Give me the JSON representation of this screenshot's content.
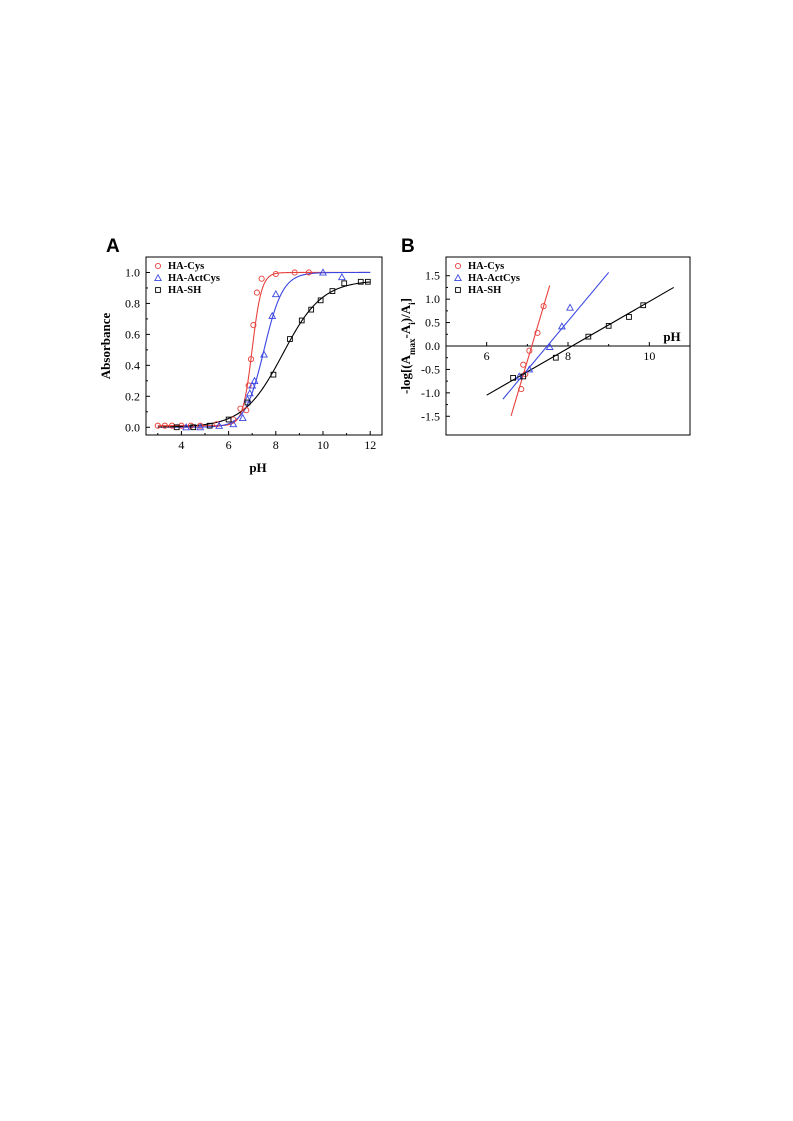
{
  "figure": {
    "panels": [
      "A",
      "B"
    ],
    "legend": [
      "HA-Cys",
      "HA-ActCys",
      "HA-SH"
    ],
    "colors": {
      "HA-Cys": "#e8413c",
      "HA-ActCys": "#3a47e0",
      "HA-SH": "#000000"
    },
    "markers": {
      "HA-Cys": "circle",
      "HA-ActCys": "triangle",
      "HA-SH": "square"
    }
  },
  "chart_data": [
    {
      "panel": "A",
      "type": "scatter",
      "xlabel": "pH",
      "ylabel": "Absorbance",
      "xlim": [
        2.5,
        12.5
      ],
      "ylim": [
        -0.05,
        1.1
      ],
      "xticks": [
        4,
        6,
        8,
        10,
        12
      ],
      "yticks": [
        0.0,
        0.2,
        0.4,
        0.6,
        0.8,
        1.0
      ],
      "ytick_labels": [
        "0.0",
        "0.2",
        "0.4",
        "0.6",
        "0.8",
        "1.0"
      ],
      "legend_position": "top-left",
      "series": [
        {
          "name": "HA-Cys",
          "marker": "circle",
          "x": [
            3.0,
            3.3,
            3.6,
            4.0,
            4.4,
            4.8,
            5.5,
            6.2,
            6.5,
            6.75,
            6.85,
            6.95,
            7.05,
            7.2,
            7.4,
            8.0,
            8.8,
            9.4
          ],
          "y": [
            0.01,
            0.01,
            0.01,
            0.01,
            0.01,
            0.01,
            0.02,
            0.05,
            0.12,
            0.11,
            0.27,
            0.44,
            0.66,
            0.87,
            0.96,
            0.99,
            1.0,
            1.0
          ],
          "fit": {
            "form": "sigmoid",
            "pKa": 7.0,
            "k": 5.0,
            "min": 0.01,
            "max": 1.0
          }
        },
        {
          "name": "HA-ActCys",
          "marker": "triangle",
          "x": [
            4.2,
            4.8,
            5.6,
            6.2,
            6.6,
            6.8,
            6.9,
            7.0,
            7.1,
            7.5,
            7.85,
            8.0,
            10.0,
            10.8
          ],
          "y": [
            0.0,
            0.0,
            0.01,
            0.02,
            0.06,
            0.18,
            0.22,
            0.27,
            0.3,
            0.47,
            0.72,
            0.86,
            1.0,
            0.97
          ],
          "fit": {
            "form": "sigmoid",
            "pKa": 7.5,
            "k": 2.5,
            "min": 0.0,
            "max": 1.0
          }
        },
        {
          "name": "HA-SH",
          "marker": "square",
          "x": [
            3.8,
            4.5,
            5.2,
            6.0,
            6.8,
            7.9,
            8.6,
            9.1,
            9.5,
            9.9,
            10.4,
            10.9,
            11.6,
            11.9
          ],
          "y": [
            0.0,
            0.0,
            0.01,
            0.05,
            0.16,
            0.34,
            0.57,
            0.69,
            0.76,
            0.82,
            0.88,
            0.93,
            0.94,
            0.94
          ],
          "fit": {
            "form": "sigmoid",
            "pKa": 8.3,
            "k": 1.2,
            "min": 0.0,
            "max": 0.95
          }
        }
      ]
    },
    {
      "panel": "B",
      "type": "scatter",
      "xlabel": "pH",
      "ylabel": "-log[(Amax-Ai)/Ai]",
      "ylabel_parts": {
        "prefix": "-log[(A",
        "sub1": "max",
        "middle": "-A",
        "sub2": "i",
        "tail": ")/A",
        "sub3": "i",
        "suffix": "]"
      },
      "xlim": [
        5.0,
        11.0
      ],
      "ylim": [
        -1.9,
        1.9
      ],
      "xticks": [
        6,
        8,
        10
      ],
      "yticks": [
        -1.5,
        -1.0,
        -0.5,
        0.0,
        0.5,
        1.0,
        1.5
      ],
      "ytick_labels": [
        "-1.5",
        "-1.0",
        "-0.5",
        "0.0",
        "0.5",
        "1.0",
        "1.5"
      ],
      "zero_line": true,
      "legend_position": "top-left",
      "series": [
        {
          "name": "HA-Cys",
          "marker": "circle",
          "x": [
            6.85,
            6.9,
            6.95,
            7.05,
            7.25,
            7.4
          ],
          "y": [
            -0.92,
            -0.4,
            -0.6,
            -0.1,
            0.28,
            0.85
          ],
          "fit": {
            "form": "line",
            "x_range": [
              6.6,
              7.55
            ],
            "slope": 2.93,
            "intercept": -20.83
          }
        },
        {
          "name": "HA-ActCys",
          "marker": "triangle",
          "x": [
            6.8,
            7.05,
            7.55,
            7.85,
            8.05
          ],
          "y": [
            -0.65,
            -0.5,
            -0.02,
            0.42,
            0.82
          ],
          "fit": {
            "form": "line",
            "x_range": [
              6.4,
              9.0
            ],
            "slope": 1.04,
            "intercept": -7.79
          }
        },
        {
          "name": "HA-SH",
          "marker": "square",
          "x": [
            6.65,
            6.9,
            7.7,
            8.5,
            9.0,
            9.5,
            9.85
          ],
          "y": [
            -0.68,
            -0.65,
            -0.25,
            0.2,
            0.43,
            0.62,
            0.87
          ],
          "fit": {
            "form": "line",
            "x_range": [
              6.0,
              10.6
            ],
            "slope": 0.5,
            "intercept": -4.05
          }
        }
      ]
    }
  ]
}
